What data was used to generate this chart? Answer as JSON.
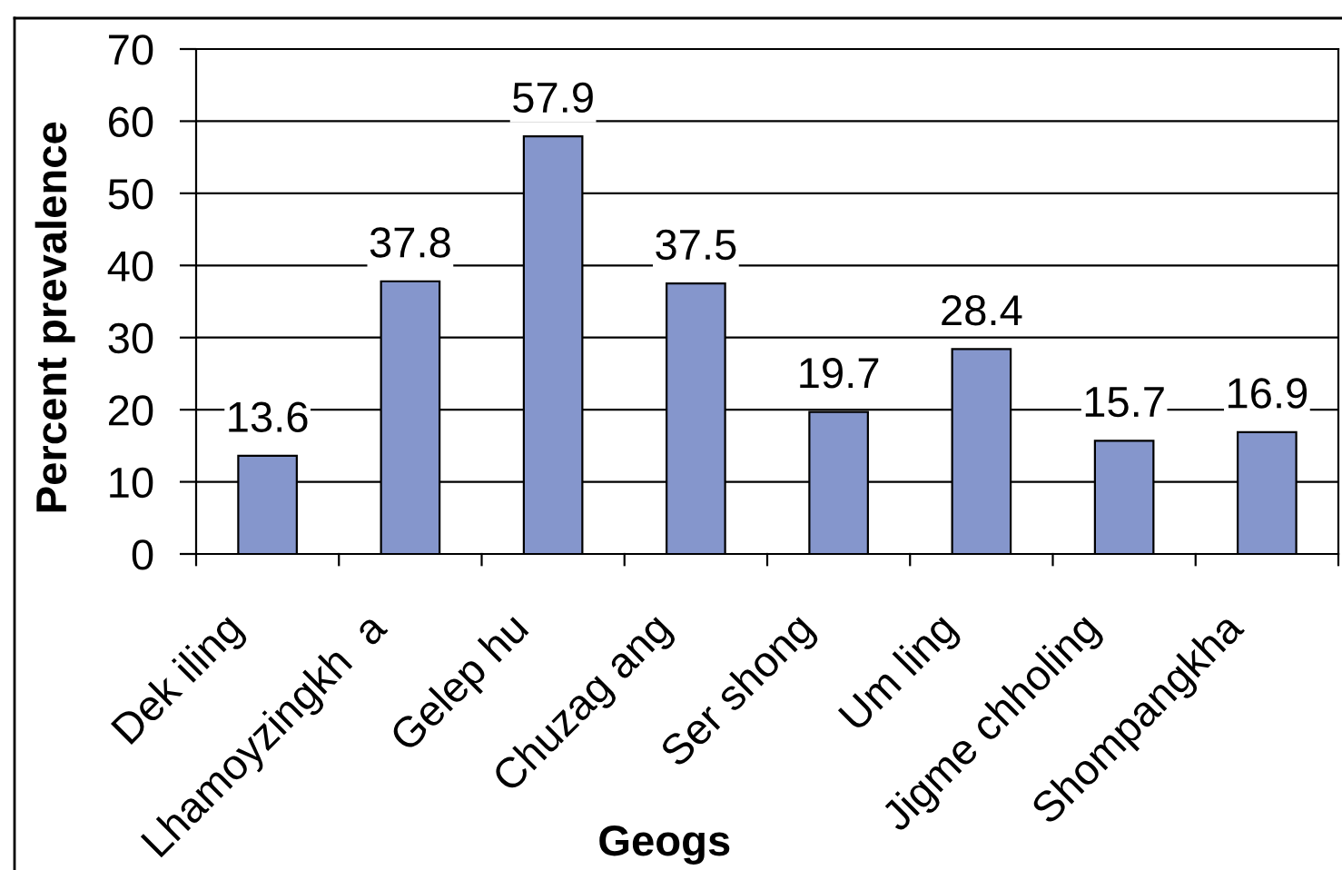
{
  "chart_data": {
    "type": "bar",
    "xlabel": "Geogs",
    "ylabel": "Percent prevalence",
    "categories": [
      "Dek iling",
      "Lhamoyzingkh  a",
      "Gelep hu",
      "Chuzag ang",
      "Ser shong",
      "Um ling",
      "Jigme chholing",
      "Shompangkha"
    ],
    "values": [
      13.6,
      37.8,
      57.9,
      37.5,
      19.7,
      28.4,
      15.7,
      16.9
    ],
    "color": "#8596cc",
    "ylim": [
      0,
      70
    ],
    "yticks": [
      0,
      10,
      20,
      30,
      40,
      50,
      60,
      70
    ],
    "grid": "y",
    "data_labels": true,
    "legend": false
  }
}
